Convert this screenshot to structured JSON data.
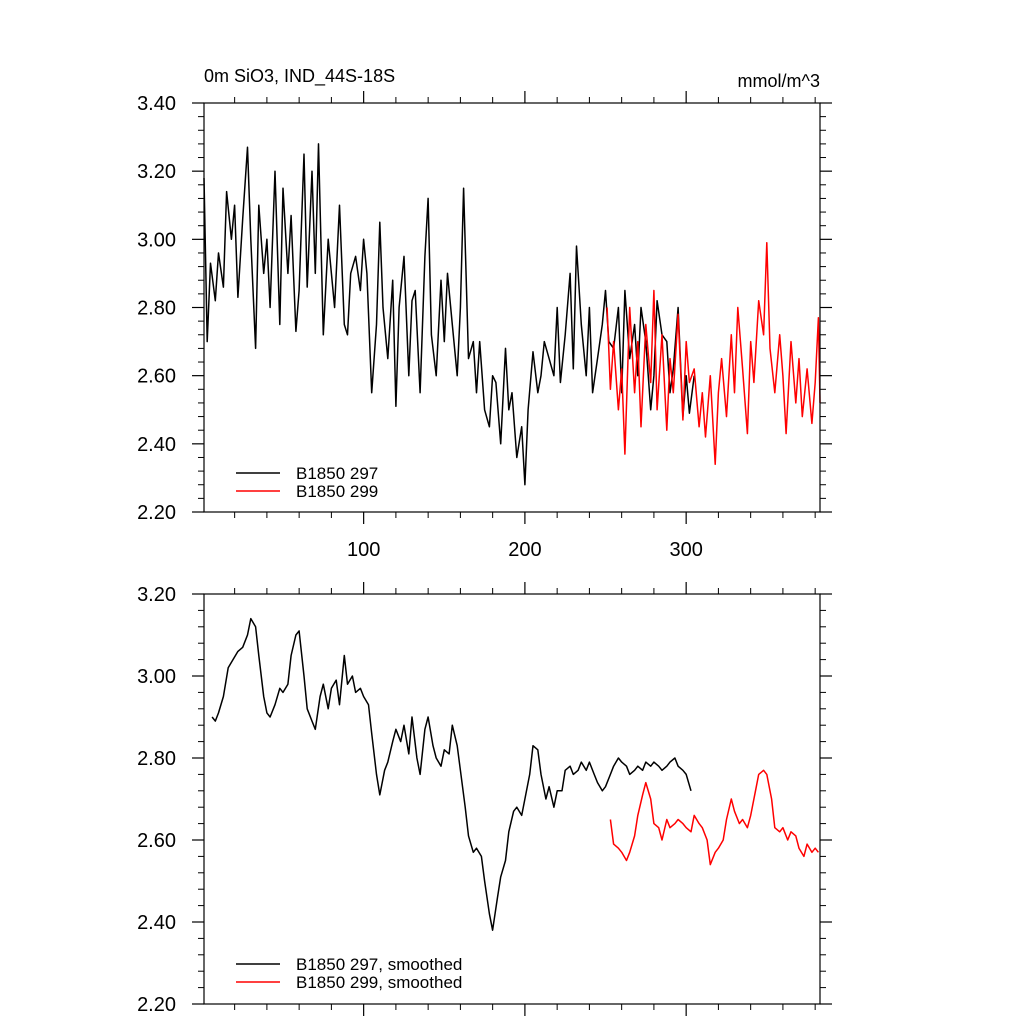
{
  "chart_data": [
    {
      "type": "line",
      "title": "0m SiO3, IND_44S-18S",
      "units": "mmol/m^3",
      "xlim": [
        1,
        383
      ],
      "ylim": [
        2.2,
        3.4
      ],
      "xticks": [
        100,
        200,
        300
      ],
      "xtick_labels": [
        "100",
        "200",
        "300"
      ],
      "yticks": [
        2.2,
        2.4,
        2.6,
        2.8,
        3.0,
        3.2,
        3.4
      ],
      "ytick_labels": [
        "2.20",
        "2.40",
        "2.60",
        "2.80",
        "3.00",
        "3.20",
        "3.40"
      ],
      "legend_position": "bottom-left",
      "series": [
        {
          "name": "B1850 297",
          "color": "#000000",
          "x": [
            1,
            3,
            5,
            8,
            10,
            13,
            15,
            18,
            20,
            22,
            25,
            28,
            30,
            33,
            35,
            38,
            40,
            42,
            45,
            48,
            50,
            53,
            55,
            58,
            60,
            63,
            65,
            68,
            70,
            72,
            75,
            78,
            80,
            82,
            85,
            88,
            90,
            92,
            95,
            98,
            100,
            102,
            105,
            108,
            110,
            112,
            115,
            118,
            120,
            122,
            125,
            128,
            130,
            132,
            135,
            138,
            140,
            142,
            145,
            148,
            150,
            152,
            155,
            158,
            160,
            162,
            165,
            168,
            170,
            172,
            175,
            178,
            180,
            182,
            185,
            188,
            190,
            192,
            195,
            198,
            200,
            202,
            205,
            208,
            210,
            212,
            215,
            218,
            220,
            222,
            225,
            228,
            230,
            232,
            235,
            238,
            240,
            242,
            245,
            248,
            250,
            252,
            255,
            258,
            260,
            262,
            265,
            268,
            270,
            272,
            275,
            278,
            280,
            282,
            285,
            288,
            290,
            292,
            295,
            298,
            300,
            302,
            305
          ],
          "values": [
            3.18,
            2.7,
            2.93,
            2.82,
            2.96,
            2.86,
            3.14,
            3.0,
            3.1,
            2.83,
            3.06,
            3.27,
            3.0,
            2.68,
            3.1,
            2.9,
            3.0,
            2.8,
            3.2,
            2.75,
            3.15,
            2.9,
            3.07,
            2.73,
            2.85,
            3.25,
            2.86,
            3.2,
            2.9,
            3.28,
            2.72,
            3.0,
            2.9,
            2.8,
            3.1,
            2.75,
            2.72,
            2.9,
            2.95,
            2.85,
            3.0,
            2.9,
            2.55,
            2.75,
            3.05,
            2.8,
            2.65,
            2.88,
            2.51,
            2.8,
            2.95,
            2.6,
            2.82,
            2.85,
            2.55,
            2.95,
            3.12,
            2.72,
            2.6,
            2.88,
            2.7,
            2.9,
            2.75,
            2.6,
            2.8,
            3.15,
            2.65,
            2.7,
            2.55,
            2.7,
            2.5,
            2.45,
            2.6,
            2.58,
            2.4,
            2.68,
            2.5,
            2.55,
            2.36,
            2.45,
            2.28,
            2.5,
            2.67,
            2.55,
            2.6,
            2.7,
            2.65,
            2.6,
            2.8,
            2.58,
            2.72,
            2.9,
            2.62,
            2.98,
            2.75,
            2.6,
            2.8,
            2.55,
            2.65,
            2.75,
            2.85,
            2.7,
            2.68,
            2.8,
            2.55,
            2.85,
            2.65,
            2.75,
            2.6,
            2.8,
            2.7,
            2.5,
            2.6,
            2.82,
            2.72,
            2.7,
            2.55,
            2.62,
            2.8,
            2.48,
            2.6,
            2.49,
            2.6
          ]
        },
        {
          "name": "B1850 299",
          "color": "#ff0000",
          "x": [
            251,
            253,
            255,
            258,
            260,
            262,
            265,
            268,
            270,
            272,
            275,
            278,
            280,
            282,
            285,
            288,
            290,
            292,
            295,
            298,
            300,
            302,
            305,
            308,
            310,
            312,
            315,
            318,
            320,
            322,
            325,
            328,
            330,
            332,
            335,
            338,
            340,
            342,
            345,
            348,
            350,
            352,
            355,
            358,
            360,
            362,
            365,
            368,
            370,
            372,
            375,
            378,
            380,
            382,
            383
          ],
          "values": [
            2.8,
            2.56,
            2.7,
            2.5,
            2.62,
            2.37,
            2.8,
            2.55,
            2.7,
            2.45,
            2.75,
            2.58,
            2.85,
            2.5,
            2.72,
            2.44,
            2.65,
            2.55,
            2.78,
            2.47,
            2.7,
            2.58,
            2.62,
            2.45,
            2.55,
            2.42,
            2.6,
            2.34,
            2.55,
            2.65,
            2.48,
            2.72,
            2.55,
            2.8,
            2.62,
            2.43,
            2.7,
            2.58,
            2.82,
            2.72,
            2.99,
            2.68,
            2.55,
            2.72,
            2.6,
            2.43,
            2.7,
            2.52,
            2.65,
            2.48,
            2.62,
            2.46,
            2.58,
            2.77,
            2.52
          ]
        }
      ]
    },
    {
      "type": "line",
      "xlim": [
        1,
        383
      ],
      "ylim": [
        2.2,
        3.2
      ],
      "xticks": [
        100,
        200,
        300
      ],
      "yticks": [
        2.2,
        2.4,
        2.6,
        2.8,
        3.0,
        3.2
      ],
      "ytick_labels": [
        "2.20",
        "2.40",
        "2.60",
        "2.80",
        "3.00",
        "3.20"
      ],
      "legend_position": "bottom-left",
      "series": [
        {
          "name": "B1850 297, smoothed",
          "color": "#000000",
          "x": [
            6,
            8,
            10,
            13,
            16,
            19,
            22,
            25,
            28,
            30,
            33,
            35,
            38,
            40,
            42,
            45,
            48,
            50,
            53,
            55,
            58,
            60,
            63,
            65,
            68,
            70,
            73,
            75,
            78,
            80,
            83,
            85,
            88,
            90,
            93,
            95,
            98,
            100,
            103,
            105,
            108,
            110,
            113,
            115,
            118,
            120,
            123,
            125,
            128,
            130,
            133,
            135,
            138,
            140,
            143,
            145,
            148,
            150,
            153,
            155,
            158,
            160,
            163,
            165,
            168,
            170,
            173,
            175,
            178,
            180,
            183,
            185,
            188,
            190,
            193,
            195,
            198,
            200,
            203,
            205,
            208,
            210,
            213,
            215,
            218,
            220,
            223,
            225,
            228,
            230,
            233,
            235,
            238,
            240,
            243,
            245,
            248,
            250,
            253,
            255,
            258,
            260,
            263,
            265,
            268,
            270,
            273,
            275,
            278,
            280,
            283,
            285,
            288,
            290,
            293,
            295,
            298,
            300,
            303
          ],
          "values": [
            2.9,
            2.89,
            2.91,
            2.95,
            3.02,
            3.04,
            3.06,
            3.07,
            3.1,
            3.14,
            3.12,
            3.05,
            2.95,
            2.91,
            2.9,
            2.93,
            2.97,
            2.96,
            2.98,
            3.05,
            3.1,
            3.11,
            3.0,
            2.92,
            2.89,
            2.87,
            2.95,
            2.98,
            2.92,
            2.97,
            2.99,
            2.93,
            3.05,
            2.98,
            3.0,
            2.96,
            2.97,
            2.95,
            2.93,
            2.86,
            2.76,
            2.71,
            2.77,
            2.79,
            2.84,
            2.87,
            2.84,
            2.88,
            2.81,
            2.9,
            2.8,
            2.76,
            2.87,
            2.9,
            2.83,
            2.8,
            2.78,
            2.82,
            2.81,
            2.88,
            2.83,
            2.77,
            2.68,
            2.61,
            2.57,
            2.58,
            2.56,
            2.5,
            2.42,
            2.38,
            2.46,
            2.51,
            2.55,
            2.62,
            2.67,
            2.68,
            2.66,
            2.7,
            2.76,
            2.83,
            2.82,
            2.76,
            2.7,
            2.73,
            2.68,
            2.72,
            2.72,
            2.77,
            2.78,
            2.76,
            2.77,
            2.79,
            2.77,
            2.79,
            2.76,
            2.74,
            2.72,
            2.73,
            2.76,
            2.78,
            2.8,
            2.79,
            2.78,
            2.76,
            2.77,
            2.78,
            2.77,
            2.79,
            2.78,
            2.79,
            2.78,
            2.77,
            2.78,
            2.79,
            2.8,
            2.78,
            2.77,
            2.76,
            2.72
          ]
        },
        {
          "name": "B1850 299, smoothed",
          "color": "#ff0000",
          "x": [
            253,
            255,
            258,
            260,
            263,
            265,
            268,
            270,
            273,
            275,
            278,
            280,
            283,
            285,
            288,
            290,
            293,
            295,
            298,
            300,
            303,
            305,
            308,
            310,
            313,
            315,
            318,
            320,
            323,
            325,
            328,
            330,
            333,
            335,
            338,
            340,
            343,
            345,
            348,
            350,
            353,
            355,
            358,
            360,
            363,
            365,
            368,
            370,
            373,
            375,
            378,
            380,
            382
          ],
          "values": [
            2.65,
            2.59,
            2.58,
            2.57,
            2.55,
            2.57,
            2.61,
            2.66,
            2.71,
            2.74,
            2.7,
            2.64,
            2.63,
            2.6,
            2.65,
            2.63,
            2.64,
            2.65,
            2.64,
            2.63,
            2.62,
            2.66,
            2.64,
            2.63,
            2.6,
            2.54,
            2.57,
            2.58,
            2.6,
            2.65,
            2.7,
            2.67,
            2.64,
            2.65,
            2.63,
            2.66,
            2.72,
            2.76,
            2.77,
            2.76,
            2.7,
            2.63,
            2.62,
            2.63,
            2.6,
            2.62,
            2.61,
            2.58,
            2.56,
            2.59,
            2.57,
            2.58,
            2.57
          ]
        }
      ]
    }
  ]
}
